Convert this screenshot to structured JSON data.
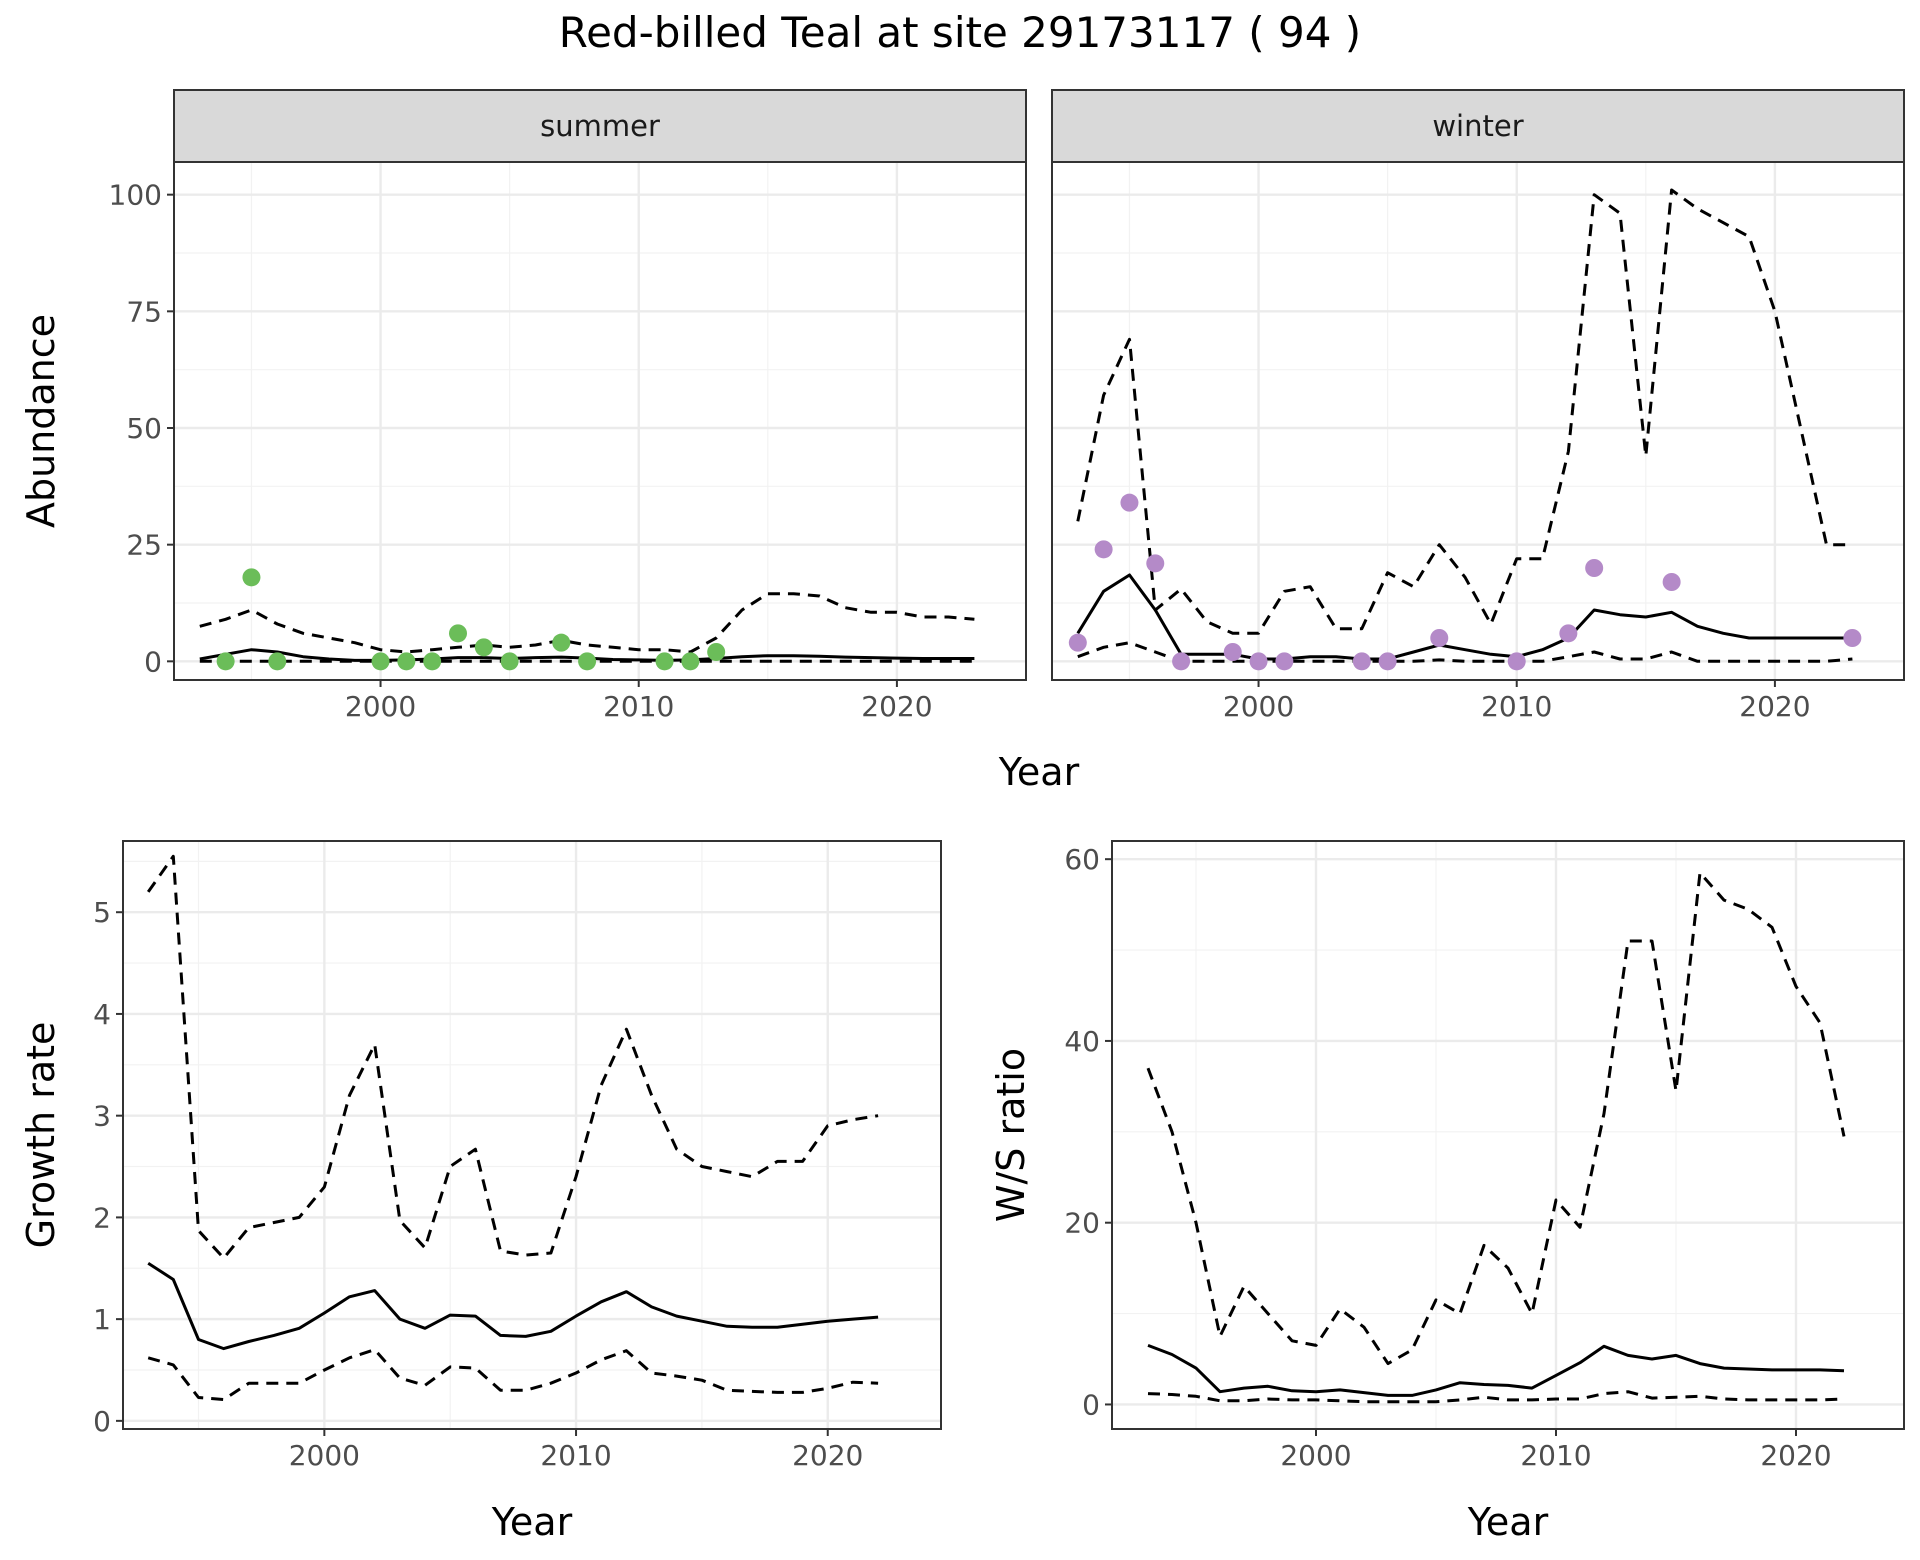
{
  "title": "Red-billed Teal at site 29173117 ( 94 )",
  "chart_data": [
    {
      "type": "line",
      "panel": "abundance",
      "facets": [
        "summer",
        "winter"
      ],
      "xlabel": "Year",
      "ylabel": "Abundance",
      "xlim": [
        1992,
        2025
      ],
      "ylim": [
        -4,
        107
      ],
      "xticks": [
        2000,
        2010,
        2020
      ],
      "yticks": [
        0,
        25,
        50,
        75,
        100
      ],
      "grid": true,
      "colors": {
        "summer_points": "#6bbd59",
        "winter_points": "#b48ac8",
        "line": "#000000"
      },
      "series": {
        "summer": {
          "points": {
            "x": [
              1994,
              1995,
              1996,
              2000,
              2001,
              2002,
              2003,
              2004,
              2005,
              2007,
              2008,
              2011,
              2012,
              2013
            ],
            "y": [
              0,
              18,
              0,
              0,
              0,
              0,
              6,
              3,
              0,
              4,
              0,
              0,
              0,
              2
            ]
          },
          "x": [
            1993,
            1994,
            1995,
            1996,
            1997,
            1998,
            1999,
            2000,
            2001,
            2002,
            2003,
            2004,
            2005,
            2006,
            2007,
            2008,
            2009,
            2010,
            2011,
            2012,
            2013,
            2014,
            2015,
            2016,
            2017,
            2018,
            2019,
            2020,
            2021,
            2022,
            2023
          ],
          "mean": [
            0.5,
            1.5,
            2.5,
            2,
            1,
            0.5,
            0.2,
            0.2,
            0.3,
            0.5,
            0.8,
            0.8,
            0.6,
            0.8,
            0.9,
            0.7,
            0.4,
            0.3,
            0.2,
            0.3,
            0.6,
            1,
            1.2,
            1.2,
            1.1,
            0.9,
            0.8,
            0.7,
            0.6,
            0.6,
            0.6
          ],
          "upper": [
            7.5,
            9,
            11,
            8,
            6,
            5,
            4,
            2.5,
            2,
            2.5,
            3,
            3.5,
            3,
            3.5,
            4.5,
            3.5,
            3,
            2.5,
            2.5,
            2,
            5,
            11,
            14.5,
            14.5,
            14,
            11.5,
            10.5,
            10.5,
            9.5,
            9.5,
            9
          ],
          "lower": [
            0,
            0,
            0,
            0,
            0,
            0,
            0,
            0,
            0,
            0,
            0,
            0,
            0,
            0,
            0,
            0,
            0,
            0,
            0,
            0,
            0,
            0,
            0,
            0,
            0,
            0,
            0,
            0,
            0,
            0,
            0
          ]
        },
        "winter": {
          "points": {
            "x": [
              1993,
              1994,
              1995,
              1996,
              1997,
              1999,
              2000,
              2001,
              2004,
              2005,
              2007,
              2010,
              2012,
              2013,
              2016,
              2023
            ],
            "y": [
              4,
              24,
              34,
              21,
              0,
              2,
              0,
              0,
              0,
              0,
              5,
              0,
              6,
              20,
              17,
              5
            ]
          },
          "x": [
            1993,
            1994,
            1995,
            1996,
            1997,
            1998,
            1999,
            2000,
            2001,
            2002,
            2003,
            2004,
            2005,
            2006,
            2007,
            2008,
            2009,
            2010,
            2011,
            2012,
            2013,
            2014,
            2015,
            2016,
            2017,
            2018,
            2019,
            2020,
            2021,
            2022,
            2023
          ],
          "mean": [
            6,
            15,
            18.5,
            11,
            1.5,
            1.5,
            1.5,
            0.5,
            0.5,
            1,
            1,
            0.5,
            0.5,
            2,
            3.5,
            2.5,
            1.5,
            1,
            2.5,
            5,
            11,
            10,
            9.5,
            10.5,
            7.5,
            6,
            5,
            5,
            5,
            5,
            5
          ],
          "upper": [
            30,
            57,
            69,
            11,
            15.5,
            8.5,
            6,
            6,
            15,
            16,
            7,
            7,
            19,
            16,
            25,
            18,
            8,
            22,
            22,
            45,
            100,
            96,
            44,
            101,
            97,
            94,
            91,
            75,
            50,
            25,
            25
          ],
          "lower": [
            1,
            3,
            4,
            2,
            0,
            0,
            0,
            0,
            0,
            0,
            0,
            0,
            0,
            0,
            0.3,
            0,
            0,
            0,
            0,
            1,
            2,
            0.5,
            0.5,
            2,
            0,
            0,
            0,
            0,
            0,
            0,
            0.5
          ]
        }
      }
    },
    {
      "type": "line",
      "panel": "growth",
      "xlabel": "Year",
      "ylabel": "Growth rate",
      "xlim": [
        1992,
        2024.5
      ],
      "ylim": [
        -0.08,
        5.7
      ],
      "xticks": [
        2000,
        2010,
        2020
      ],
      "yticks": [
        0,
        1,
        2,
        3,
        4,
        5
      ],
      "grid": true,
      "series": {
        "x": [
          1993,
          1994,
          1995,
          1996,
          1997,
          1998,
          1999,
          2000,
          2001,
          2002,
          2003,
          2004,
          2005,
          2006,
          2007,
          2008,
          2009,
          2010,
          2011,
          2012,
          2013,
          2014,
          2015,
          2016,
          2017,
          2018,
          2019,
          2020,
          2021,
          2022
        ],
        "mean": [
          1.55,
          1.39,
          0.8,
          0.71,
          0.78,
          0.84,
          0.91,
          1.06,
          1.22,
          1.28,
          1.0,
          0.91,
          1.04,
          1.03,
          0.84,
          0.83,
          0.88,
          1.03,
          1.17,
          1.27,
          1.12,
          1.03,
          0.98,
          0.93,
          0.92,
          0.92,
          0.95,
          0.98,
          1.0,
          1.02
        ],
        "upper": [
          5.2,
          5.55,
          1.87,
          1.6,
          1.9,
          1.95,
          2.0,
          2.3,
          3.2,
          3.7,
          1.97,
          1.7,
          2.5,
          2.67,
          1.67,
          1.63,
          1.65,
          2.4,
          3.3,
          3.85,
          3.2,
          2.67,
          2.5,
          2.45,
          2.4,
          2.55,
          2.55,
          2.9,
          2.96,
          3.0
        ],
        "lower": [
          0.62,
          0.55,
          0.23,
          0.21,
          0.37,
          0.37,
          0.37,
          0.5,
          0.62,
          0.7,
          0.42,
          0.35,
          0.53,
          0.52,
          0.3,
          0.3,
          0.37,
          0.47,
          0.6,
          0.69,
          0.47,
          0.44,
          0.4,
          0.3,
          0.29,
          0.28,
          0.28,
          0.32,
          0.38,
          0.37
        ]
      }
    },
    {
      "type": "line",
      "panel": "ratio",
      "xlabel": "Year",
      "ylabel": "W/S ratio",
      "xlim": [
        1991.5,
        2024.5
      ],
      "ylim": [
        -2.7,
        62
      ],
      "xticks": [
        2000,
        2010,
        2020
      ],
      "yticks": [
        0,
        20,
        40,
        60
      ],
      "grid": true,
      "series": {
        "x": [
          1993,
          1994,
          1995,
          1996,
          1997,
          1998,
          1999,
          2000,
          2001,
          2002,
          2003,
          2004,
          2005,
          2006,
          2007,
          2008,
          2009,
          2010,
          2011,
          2012,
          2013,
          2014,
          2015,
          2016,
          2017,
          2018,
          2019,
          2020,
          2021,
          2022
        ],
        "mean": [
          6.5,
          5.5,
          4,
          1.4,
          1.8,
          2,
          1.5,
          1.4,
          1.6,
          1.3,
          1,
          1,
          1.6,
          2.4,
          2.2,
          2.1,
          1.8,
          3.2,
          4.6,
          6.4,
          5.4,
          5,
          5.4,
          4.5,
          4,
          3.9,
          3.8,
          3.8,
          3.8,
          3.7
        ],
        "upper": [
          37,
          30,
          20,
          7.5,
          13,
          10,
          7,
          6.5,
          10.5,
          8.5,
          4.5,
          6,
          11.5,
          10,
          17.5,
          15,
          10,
          22.5,
          19.5,
          32,
          51,
          51,
          34.5,
          58.5,
          55.5,
          54.5,
          52.5,
          46,
          42,
          29.5
        ],
        "lower": [
          1.2,
          1.1,
          0.9,
          0.4,
          0.4,
          0.6,
          0.5,
          0.5,
          0.4,
          0.3,
          0.3,
          0.3,
          0.3,
          0.5,
          0.8,
          0.5,
          0.5,
          0.6,
          0.6,
          1.2,
          1.4,
          0.7,
          0.8,
          0.9,
          0.6,
          0.5,
          0.5,
          0.5,
          0.5,
          0.6
        ]
      }
    }
  ]
}
